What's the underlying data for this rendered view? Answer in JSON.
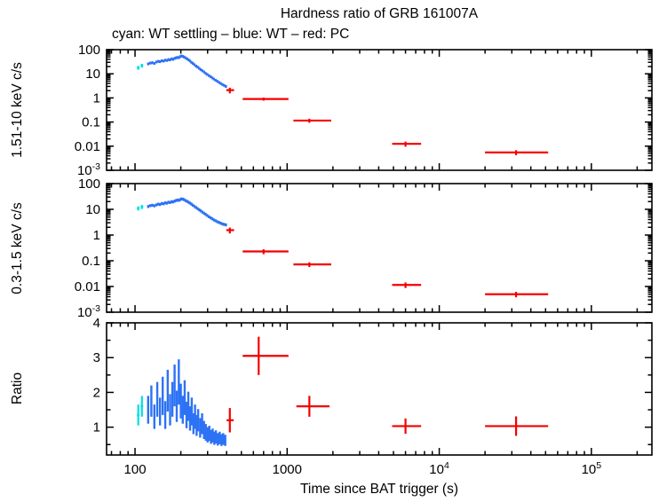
{
  "chart_data": {
    "type": "scatter",
    "title": "Hardness ratio of GRB 161007A",
    "subtitle": "cyan: WT settling – blue: WT – red: PC",
    "xlabel": "Time since BAT trigger (s)",
    "xscale": "log",
    "xlim": [
      65,
      250000
    ],
    "x_major_ticks": [
      100,
      1000,
      10000,
      100000
    ],
    "x_tick_labels": [
      "100",
      "1000",
      "10^4",
      "10^5"
    ],
    "grid": false,
    "colors": {
      "wt_settling": "#00e0e4",
      "wt": "#2d72f5",
      "pc": "#f40000"
    },
    "panels": [
      {
        "name": "hard-rate",
        "ylabel": "1.51-10 keV c/s",
        "yscale": "log",
        "ylim": [
          0.001,
          100
        ],
        "y_major_ticks": [
          100,
          10,
          1,
          0.1,
          0.01,
          0.001
        ],
        "y_tick_labels": [
          "100",
          "10",
          "1",
          "0.1",
          "0.01",
          "10^-3"
        ],
        "series": [
          {
            "name": "wt-settling",
            "color_key": "wt_settling",
            "fmt": "xy",
            "lw": 2.2,
            "xerr_frac": 0.02,
            "yerr_frac": 0.18,
            "points": [
              [
                105,
                18
              ],
              [
                111,
                22
              ]
            ]
          },
          {
            "name": "wt",
            "color_key": "wt",
            "fmt": "xy",
            "lw": 2.4,
            "xerr_frac": 0.013,
            "yerr_frac": 0.13,
            "points": [
              [
                122,
                26
              ],
              [
                126,
                28
              ],
              [
                130,
                29
              ],
              [
                134,
                27
              ],
              [
                138,
                31
              ],
              [
                142,
                33
              ],
              [
                146,
                32
              ],
              [
                150,
                35
              ],
              [
                154,
                34
              ],
              [
                158,
                37
              ],
              [
                162,
                36
              ],
              [
                166,
                39
              ],
              [
                170,
                38
              ],
              [
                174,
                42
              ],
              [
                178,
                40
              ],
              [
                182,
                44
              ],
              [
                186,
                46
              ],
              [
                190,
                48
              ],
              [
                194,
                47
              ],
              [
                198,
                52
              ],
              [
                202,
                55
              ],
              [
                206,
                53
              ],
              [
                210,
                50
              ],
              [
                215,
                46
              ],
              [
                220,
                42
              ],
              [
                225,
                38
              ],
              [
                230,
                34
              ],
              [
                235,
                30
              ],
              [
                240,
                27
              ],
              [
                246,
                24
              ],
              [
                252,
                21
              ],
              [
                258,
                19
              ],
              [
                264,
                17
              ],
              [
                270,
                15
              ],
              [
                277,
                13.5
              ],
              [
                284,
                12
              ],
              [
                291,
                10.5
              ],
              [
                298,
                9.5
              ],
              [
                306,
                8.5
              ],
              [
                314,
                7.6
              ],
              [
                322,
                6.8
              ],
              [
                330,
                6.1
              ],
              [
                339,
                5.4
              ],
              [
                348,
                4.9
              ],
              [
                357,
                4.4
              ],
              [
                366,
                4.0
              ],
              [
                376,
                3.6
              ],
              [
                386,
                3.3
              ],
              [
                396,
                3.0
              ]
            ]
          },
          {
            "name": "pc",
            "color_key": "pc",
            "fmt": "full",
            "lw": 2.2,
            "points": [
              [
                420,
                2.1,
                398,
                448,
                0.55
              ],
              [
                700,
                0.9,
                510,
                1020,
                0.13
              ],
              [
                1400,
                0.115,
                1100,
                1950,
                0.022
              ],
              [
                6000,
                0.0125,
                4900,
                7600,
                0.003
              ],
              [
                32000,
                0.0055,
                20000,
                52000,
                0.0013
              ]
            ]
          }
        ]
      },
      {
        "name": "soft-rate",
        "ylabel": "0.3-1.5 keV c/s",
        "yscale": "log",
        "ylim": [
          0.001,
          100
        ],
        "y_major_ticks": [
          100,
          10,
          1,
          0.1,
          0.01,
          0.001
        ],
        "y_tick_labels": [
          "100",
          "10",
          "1",
          "0.1",
          "0.01",
          "10^-3"
        ],
        "series": [
          {
            "name": "wt-settling",
            "color_key": "wt_settling",
            "fmt": "xy",
            "lw": 2.2,
            "xerr_frac": 0.02,
            "yerr_frac": 0.18,
            "points": [
              [
                105,
                11
              ],
              [
                111,
                12.5
              ]
            ]
          },
          {
            "name": "wt",
            "color_key": "wt",
            "fmt": "xy",
            "lw": 2.4,
            "xerr_frac": 0.013,
            "yerr_frac": 0.13,
            "points": [
              [
                122,
                13
              ],
              [
                126,
                14
              ],
              [
                130,
                14.5
              ],
              [
                134,
                13.8
              ],
              [
                138,
                15
              ],
              [
                142,
                16
              ],
              [
                146,
                15.5
              ],
              [
                150,
                17
              ],
              [
                154,
                16.5
              ],
              [
                158,
                18
              ],
              [
                162,
                17.5
              ],
              [
                166,
                19
              ],
              [
                170,
                18.5
              ],
              [
                174,
                20
              ],
              [
                178,
                19.5
              ],
              [
                182,
                21
              ],
              [
                186,
                22
              ],
              [
                190,
                23
              ],
              [
                194,
                22.5
              ],
              [
                198,
                24
              ],
              [
                202,
                25.5
              ],
              [
                206,
                25
              ],
              [
                210,
                24
              ],
              [
                215,
                22
              ],
              [
                220,
                20.5
              ],
              [
                225,
                19
              ],
              [
                230,
                17.5
              ],
              [
                235,
                16
              ],
              [
                240,
                14.5
              ],
              [
                246,
                13
              ],
              [
                252,
                11.8
              ],
              [
                258,
                10.7
              ],
              [
                264,
                9.7
              ],
              [
                270,
                8.8
              ],
              [
                277,
                7.9
              ],
              [
                284,
                7.1
              ],
              [
                291,
                6.4
              ],
              [
                298,
                5.8
              ],
              [
                306,
                5.2
              ],
              [
                314,
                4.7
              ],
              [
                322,
                4.3
              ],
              [
                330,
                3.9
              ],
              [
                339,
                3.6
              ],
              [
                348,
                3.3
              ],
              [
                357,
                3.1
              ],
              [
                366,
                2.9
              ],
              [
                376,
                2.7
              ],
              [
                386,
                2.6
              ],
              [
                396,
                2.5
              ]
            ]
          },
          {
            "name": "pc",
            "color_key": "pc",
            "fmt": "full",
            "lw": 2.2,
            "points": [
              [
                420,
                1.55,
                398,
                448,
                0.4
              ],
              [
                700,
                0.23,
                510,
                1020,
                0.05
              ],
              [
                1400,
                0.072,
                1100,
                1950,
                0.015
              ],
              [
                6000,
                0.0115,
                4900,
                7600,
                0.0028
              ],
              [
                32000,
                0.005,
                20000,
                52000,
                0.0012
              ]
            ]
          }
        ]
      },
      {
        "name": "ratio",
        "ylabel": "Ratio",
        "yscale": "linear",
        "ylim": [
          0.2,
          4
        ],
        "y_major_ticks": [
          1,
          2,
          3,
          4
        ],
        "y_tick_labels": [
          "1",
          "2",
          "3",
          "4"
        ],
        "y_minor_ticks": [
          0.5,
          1.5,
          2.5,
          3.5
        ],
        "series": [
          {
            "name": "wt-settling",
            "color_key": "wt_settling",
            "fmt": "xye",
            "lw": 2.2,
            "xerr_frac": 0.02,
            "points": [
              [
                105,
                1.35,
                0.3
              ],
              [
                111,
                1.6,
                0.3
              ]
            ]
          },
          {
            "name": "wt",
            "color_key": "wt",
            "fmt": "xye",
            "lw": 2.4,
            "xerr_frac": 0.013,
            "points": [
              [
                122,
                1.5,
                0.4
              ],
              [
                128,
                1.75,
                0.45
              ],
              [
                134,
                1.3,
                0.35
              ],
              [
                140,
                1.8,
                0.5
              ],
              [
                146,
                1.45,
                0.4
              ],
              [
                152,
                1.9,
                0.55
              ],
              [
                158,
                1.35,
                0.4
              ],
              [
                164,
                2.05,
                0.6
              ],
              [
                170,
                1.5,
                0.45
              ],
              [
                176,
                1.8,
                0.5
              ],
              [
                182,
                2.2,
                0.6
              ],
              [
                188,
                1.6,
                0.45
              ],
              [
                194,
                2.3,
                0.65
              ],
              [
                200,
                1.75,
                0.5
              ],
              [
                206,
                1.5,
                0.4
              ],
              [
                212,
                1.85,
                0.5
              ],
              [
                218,
                1.35,
                0.38
              ],
              [
                224,
                1.6,
                0.42
              ],
              [
                230,
                1.25,
                0.35
              ],
              [
                236,
                1.45,
                0.4
              ],
              [
                242,
                1.1,
                0.3
              ],
              [
                248,
                1.3,
                0.35
              ],
              [
                254,
                1.05,
                0.3
              ],
              [
                260,
                1.2,
                0.32
              ],
              [
                268,
                0.98,
                0.28
              ],
              [
                276,
                1.1,
                0.3
              ],
              [
                284,
                0.92,
                0.26
              ],
              [
                292,
                0.85,
                0.24
              ],
              [
                300,
                0.78,
                0.22
              ],
              [
                308,
                0.82,
                0.22
              ],
              [
                316,
                0.72,
                0.2
              ],
              [
                324,
                0.76,
                0.2
              ],
              [
                332,
                0.68,
                0.19
              ],
              [
                340,
                0.72,
                0.19
              ],
              [
                350,
                0.65,
                0.18
              ],
              [
                360,
                0.69,
                0.18
              ],
              [
                370,
                0.63,
                0.17
              ],
              [
                380,
                0.66,
                0.17
              ],
              [
                392,
                0.62,
                0.16
              ]
            ]
          },
          {
            "name": "pc",
            "color_key": "pc",
            "fmt": "full",
            "lw": 2.2,
            "points": [
              [
                420,
                1.2,
                400,
                445,
                0.35
              ],
              [
                650,
                3.05,
                510,
                1020,
                0.55
              ],
              [
                1400,
                1.6,
                1150,
                1900,
                0.3
              ],
              [
                6000,
                1.03,
                4900,
                7600,
                0.22
              ],
              [
                32000,
                1.03,
                20000,
                52000,
                0.28
              ]
            ]
          }
        ]
      }
    ]
  }
}
